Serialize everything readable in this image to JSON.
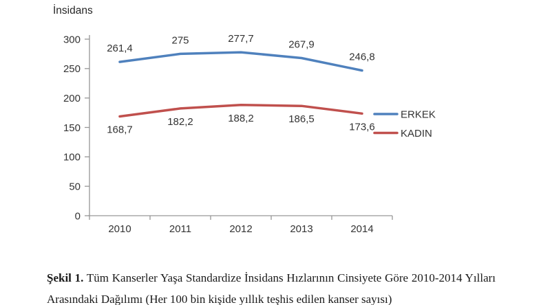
{
  "chart_data": {
    "type": "line",
    "title": "İnsidans",
    "categories": [
      "2010",
      "2011",
      "2012",
      "2013",
      "2014"
    ],
    "series": [
      {
        "name": "ERKEK",
        "color": "#4F81BD",
        "values": [
          261.4,
          275,
          277.7,
          267.9,
          246.8
        ],
        "data_labels": [
          "261,4",
          "275",
          "277,7",
          "267,9",
          "246,8"
        ],
        "label_position": "above"
      },
      {
        "name": "KADIN",
        "color": "#C0504D",
        "values": [
          168.7,
          182.2,
          188.2,
          186.5,
          173.6
        ],
        "data_labels": [
          "168,7",
          "182,2",
          "188,2",
          "186,5",
          "173,6"
        ],
        "label_position": "below"
      }
    ],
    "xlabel": "",
    "ylabel": "İnsidans",
    "ylim": [
      0,
      300
    ],
    "ytick_step": 50,
    "yticks": [
      "0",
      "50",
      "100",
      "150",
      "200",
      "250",
      "300"
    ],
    "legend_position": "right",
    "grid": false,
    "axis_color": "#969696",
    "text_color": "#333333"
  },
  "caption": {
    "label": "Şekil 1.",
    "text": "Tüm Kanserler Yaşa Standardize İnsidans Hızlarının Cinsiyete Göre 2010-2014 Yılları Arasındaki Dağılımı (Her 100 bin kişide yıllık teşhis edilen kanser sayısı)"
  }
}
